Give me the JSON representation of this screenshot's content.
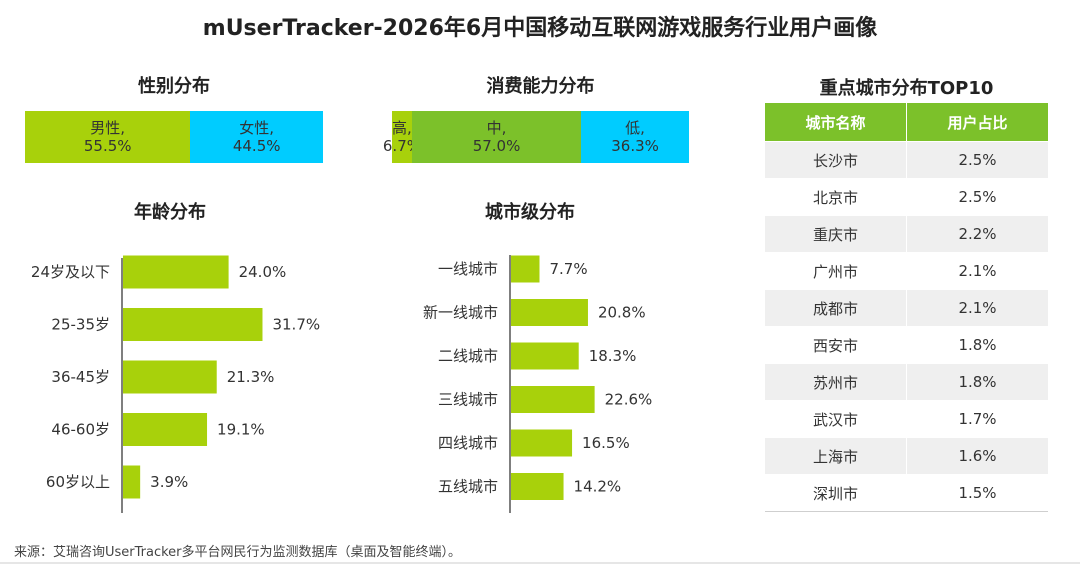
{
  "title": "mUserTracker-2026年6月中国移动互联网游戏服务行业用户画像",
  "source": "来源：艾瑞咨询UserTracker多平台网民行为监测数据库（桌面及智能终端）。",
  "colors": {
    "bar": "#a8d10b",
    "male": "#a8d10b",
    "female": "#00ccff",
    "high": "#a8d10b",
    "mid": "#7cc12a",
    "low": "#00ccff",
    "table_header": "#7cc12a",
    "axis": "#555555"
  },
  "chart_data": [
    {
      "type": "bar",
      "stacked": true,
      "orientation": "horizontal",
      "title": "性别分布",
      "series": [
        {
          "name": "男性",
          "value": 55.5,
          "label": "55.5%"
        },
        {
          "name": "女性",
          "value": 44.5,
          "label": "44.5%"
        }
      ]
    },
    {
      "type": "bar",
      "stacked": true,
      "orientation": "horizontal",
      "title": "消费能力分布",
      "series": [
        {
          "name": "高",
          "value": 6.7,
          "label": "6.7%"
        },
        {
          "name": "中",
          "value": 57.0,
          "label": "57.0%"
        },
        {
          "name": "低",
          "value": 36.3,
          "label": "36.3%"
        }
      ]
    },
    {
      "type": "bar",
      "orientation": "horizontal",
      "title": "年龄分布",
      "categories": [
        "24岁及以下",
        "25-35岁",
        "36-45岁",
        "46-60岁",
        "60岁以上"
      ],
      "values": [
        24.0,
        31.7,
        21.3,
        19.1,
        3.9
      ],
      "labels": [
        "24.0%",
        "31.7%",
        "21.3%",
        "19.1%",
        "3.9%"
      ],
      "xlim": [
        0,
        35
      ]
    },
    {
      "type": "bar",
      "orientation": "horizontal",
      "title": "城市级分布",
      "categories": [
        "一线城市",
        "新一线城市",
        "二线城市",
        "三线城市",
        "四线城市",
        "五线城市"
      ],
      "values": [
        7.7,
        20.8,
        18.3,
        22.6,
        16.5,
        14.2
      ],
      "labels": [
        "7.7%",
        "20.8%",
        "18.3%",
        "22.6%",
        "16.5%",
        "14.2%"
      ],
      "xlim": [
        0,
        25
      ]
    },
    {
      "type": "table",
      "title": "重点城市分布TOP10",
      "columns": [
        "城市名称",
        "用户占比"
      ],
      "rows": [
        [
          "长沙市",
          "2.5%"
        ],
        [
          "北京市",
          "2.5%"
        ],
        [
          "重庆市",
          "2.2%"
        ],
        [
          "广州市",
          "2.1%"
        ],
        [
          "成都市",
          "2.1%"
        ],
        [
          "西安市",
          "1.8%"
        ],
        [
          "苏州市",
          "1.8%"
        ],
        [
          "武汉市",
          "1.7%"
        ],
        [
          "上海市",
          "1.6%"
        ],
        [
          "深圳市",
          "1.5%"
        ]
      ]
    }
  ]
}
